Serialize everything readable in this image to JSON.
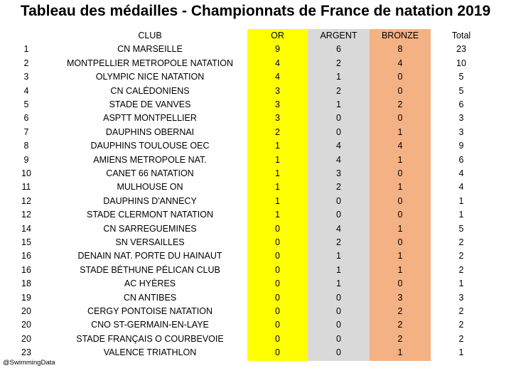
{
  "title": "Tableau des médailles - Championnats de France de natation 2019",
  "source": "@SwimmingData",
  "colors": {
    "or": "#ffff00",
    "argent": "#d9d9d9",
    "bronze": "#f4b183"
  },
  "chart_data": {
    "type": "table",
    "title": "Tableau des médailles - Championnats de France de natation 2019",
    "columns": [
      "",
      "CLUB",
      "OR",
      "ARGENT",
      "BRONZE",
      "Total"
    ],
    "rows": [
      [
        "1",
        "CN MARSEILLE",
        "9",
        "6",
        "8",
        "23"
      ],
      [
        "2",
        "MONTPELLIER METROPOLE NATATION",
        "4",
        "2",
        "4",
        "10"
      ],
      [
        "3",
        "OLYMPIC NICE NATATION",
        "4",
        "1",
        "0",
        "5"
      ],
      [
        "4",
        "CN CALÉDONIENS",
        "3",
        "2",
        "0",
        "5"
      ],
      [
        "5",
        "STADE DE VANVES",
        "3",
        "1",
        "2",
        "6"
      ],
      [
        "6",
        "ASPTT MONTPELLIER",
        "3",
        "0",
        "0",
        "3"
      ],
      [
        "7",
        "DAUPHINS OBERNAI",
        "2",
        "0",
        "1",
        "3"
      ],
      [
        "8",
        "DAUPHINS TOULOUSE OEC",
        "1",
        "4",
        "4",
        "9"
      ],
      [
        "9",
        "AMIENS METROPOLE NAT.",
        "1",
        "4",
        "1",
        "6"
      ],
      [
        "10",
        "CANET 66 NATATION",
        "1",
        "3",
        "0",
        "4"
      ],
      [
        "11",
        "MULHOUSE ON",
        "1",
        "2",
        "1",
        "4"
      ],
      [
        "12",
        "DAUPHINS D'ANNECY",
        "1",
        "0",
        "0",
        "1"
      ],
      [
        "12",
        "STADE CLERMONT NATATION",
        "1",
        "0",
        "0",
        "1"
      ],
      [
        "14",
        "CN SARREGUEMINES",
        "0",
        "4",
        "1",
        "5"
      ],
      [
        "15",
        "SN VERSAILLES",
        "0",
        "2",
        "0",
        "2"
      ],
      [
        "16",
        "DENAIN NAT. PORTE DU HAINAUT",
        "0",
        "1",
        "1",
        "2"
      ],
      [
        "16",
        "STADE BÉTHUNE PÉLICAN CLUB",
        "0",
        "1",
        "1",
        "2"
      ],
      [
        "18",
        "AC HYÈRES",
        "0",
        "1",
        "0",
        "1"
      ],
      [
        "19",
        "CN ANTIBES",
        "0",
        "0",
        "3",
        "3"
      ],
      [
        "20",
        "CERGY PONTOISE NATATION",
        "0",
        "0",
        "2",
        "2"
      ],
      [
        "20",
        "CNO ST-GERMAIN-EN-LAYE",
        "0",
        "0",
        "2",
        "2"
      ],
      [
        "20",
        "STADE FRANÇAIS O COURBEVOIE",
        "0",
        "0",
        "2",
        "2"
      ],
      [
        "23",
        "VALENCE TRIATHLON",
        "0",
        "0",
        "1",
        "1"
      ]
    ]
  }
}
